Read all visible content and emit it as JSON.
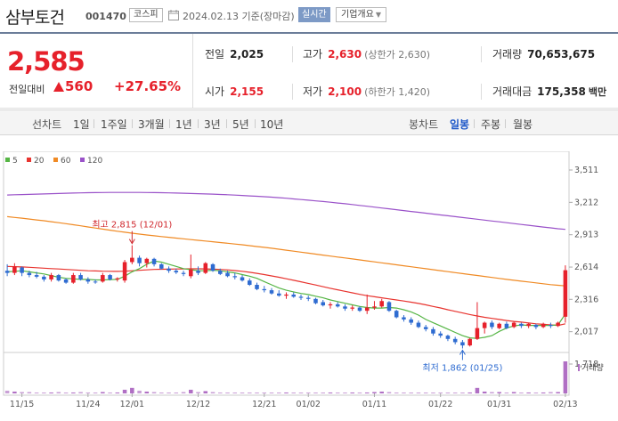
{
  "header": {
    "stock_name": "삼부토건",
    "stock_code": "001470",
    "market": "코스피",
    "date_text": "2024.02.13 기준(장마감)",
    "realtime_label": "실시간",
    "overview_label": "기업개요"
  },
  "price": {
    "current": "2,585",
    "change_label": "전일대비",
    "change_value": "560",
    "change_pct": "+27.65%"
  },
  "stats": {
    "prev_label": "전일",
    "prev_value": "2,025",
    "high_label": "고가",
    "high_value": "2,630",
    "upper_limit": "(상한가 2,630)",
    "volume_label": "거래량",
    "volume_value": "70,653,675",
    "open_label": "시가",
    "open_value": "2,155",
    "low_label": "저가",
    "low_value": "2,100",
    "lower_limit": "(하한가 1,420)",
    "amount_label": "거래대금",
    "amount_value": "175,358",
    "amount_unit": "백만"
  },
  "toolbar": {
    "line_label": "선차트",
    "periods": [
      "1일",
      "1주일",
      "3개월",
      "1년",
      "3년",
      "5년",
      "10년"
    ],
    "candle_label": "봉차트",
    "candle_periods": [
      "일봉",
      "주봉",
      "월봉"
    ],
    "active_candle": "일봉"
  },
  "colors": {
    "up": "#e6212b",
    "down": "#2f6cd1",
    "ma5": "#55b544",
    "ma20": "#e8342f",
    "ma60": "#f08a24",
    "ma120": "#9a52c9"
  },
  "chart_data": {
    "type": "candlestick",
    "legend": [
      {
        "name": "5",
        "color": "#55b544"
      },
      {
        "name": "20",
        "color": "#e8342f"
      },
      {
        "name": "60",
        "color": "#f08a24"
      },
      {
        "name": "120",
        "color": "#9a52c9"
      }
    ],
    "y_ticks": [
      3511,
      3212,
      2913,
      2614,
      2316,
      2017,
      1718
    ],
    "ylim": [
      1718,
      3511
    ],
    "x_ticks": [
      "11/15",
      "11/24",
      "12/01",
      "12/12",
      "12/21",
      "01/02",
      "01/11",
      "01/22",
      "01/31",
      "02/13"
    ],
    "annotations": {
      "high": "최고 2,815 (12/01)",
      "low": "최저 1,862 (01/25)"
    },
    "volume_label": "거래량",
    "candles": [
      {
        "o": 2580,
        "h": 2640,
        "l": 2530,
        "c": 2560
      },
      {
        "o": 2560,
        "h": 2650,
        "l": 2540,
        "c": 2620
      },
      {
        "o": 2610,
        "h": 2620,
        "l": 2530,
        "c": 2560
      },
      {
        "o": 2560,
        "h": 2580,
        "l": 2520,
        "c": 2540
      },
      {
        "o": 2540,
        "h": 2570,
        "l": 2510,
        "c": 2525
      },
      {
        "o": 2525,
        "h": 2540,
        "l": 2480,
        "c": 2500
      },
      {
        "o": 2500,
        "h": 2560,
        "l": 2480,
        "c": 2540
      },
      {
        "o": 2540,
        "h": 2550,
        "l": 2480,
        "c": 2490
      },
      {
        "o": 2500,
        "h": 2510,
        "l": 2460,
        "c": 2470
      },
      {
        "o": 2470,
        "h": 2560,
        "l": 2460,
        "c": 2540
      },
      {
        "o": 2540,
        "h": 2560,
        "l": 2490,
        "c": 2500
      },
      {
        "o": 2500,
        "h": 2520,
        "l": 2460,
        "c": 2480
      },
      {
        "o": 2480,
        "h": 2500,
        "l": 2460,
        "c": 2475
      },
      {
        "o": 2480,
        "h": 2560,
        "l": 2470,
        "c": 2540
      },
      {
        "o": 2540,
        "h": 2550,
        "l": 2490,
        "c": 2500
      },
      {
        "o": 2500,
        "h": 2520,
        "l": 2480,
        "c": 2510
      },
      {
        "o": 2490,
        "h": 2680,
        "l": 2470,
        "c": 2660
      },
      {
        "o": 2660,
        "h": 2815,
        "l": 2640,
        "c": 2700
      },
      {
        "o": 2700,
        "h": 2720,
        "l": 2620,
        "c": 2650
      },
      {
        "o": 2650,
        "h": 2700,
        "l": 2610,
        "c": 2690
      },
      {
        "o": 2690,
        "h": 2700,
        "l": 2620,
        "c": 2640
      },
      {
        "o": 2640,
        "h": 2650,
        "l": 2590,
        "c": 2600
      },
      {
        "o": 2600,
        "h": 2620,
        "l": 2560,
        "c": 2580
      },
      {
        "o": 2580,
        "h": 2600,
        "l": 2550,
        "c": 2565
      },
      {
        "o": 2560,
        "h": 2580,
        "l": 2530,
        "c": 2550
      },
      {
        "o": 2530,
        "h": 2730,
        "l": 2510,
        "c": 2590
      },
      {
        "o": 2580,
        "h": 2620,
        "l": 2540,
        "c": 2560
      },
      {
        "o": 2560,
        "h": 2660,
        "l": 2550,
        "c": 2650
      },
      {
        "o": 2640,
        "h": 2650,
        "l": 2570,
        "c": 2580
      },
      {
        "o": 2580,
        "h": 2600,
        "l": 2540,
        "c": 2550
      },
      {
        "o": 2560,
        "h": 2580,
        "l": 2520,
        "c": 2530
      },
      {
        "o": 2530,
        "h": 2560,
        "l": 2500,
        "c": 2520
      },
      {
        "o": 2520,
        "h": 2540,
        "l": 2480,
        "c": 2490
      },
      {
        "o": 2490,
        "h": 2510,
        "l": 2440,
        "c": 2450
      },
      {
        "o": 2450,
        "h": 2470,
        "l": 2400,
        "c": 2410
      },
      {
        "o": 2410,
        "h": 2440,
        "l": 2380,
        "c": 2400
      },
      {
        "o": 2400,
        "h": 2420,
        "l": 2360,
        "c": 2370
      },
      {
        "o": 2370,
        "h": 2400,
        "l": 2340,
        "c": 2350
      },
      {
        "o": 2350,
        "h": 2380,
        "l": 2320,
        "c": 2360
      },
      {
        "o": 2360,
        "h": 2380,
        "l": 2330,
        "c": 2340
      },
      {
        "o": 2340,
        "h": 2360,
        "l": 2310,
        "c": 2330
      },
      {
        "o": 2330,
        "h": 2350,
        "l": 2300,
        "c": 2320
      },
      {
        "o": 2320,
        "h": 2330,
        "l": 2270,
        "c": 2280
      },
      {
        "o": 2290,
        "h": 2310,
        "l": 2250,
        "c": 2260
      },
      {
        "o": 2260,
        "h": 2290,
        "l": 2230,
        "c": 2270
      },
      {
        "o": 2270,
        "h": 2290,
        "l": 2240,
        "c": 2250
      },
      {
        "o": 2250,
        "h": 2270,
        "l": 2210,
        "c": 2230
      },
      {
        "o": 2230,
        "h": 2260,
        "l": 2210,
        "c": 2240
      },
      {
        "o": 2240,
        "h": 2250,
        "l": 2200,
        "c": 2210
      },
      {
        "o": 2210,
        "h": 2360,
        "l": 2180,
        "c": 2240
      },
      {
        "o": 2240,
        "h": 2300,
        "l": 2220,
        "c": 2250
      },
      {
        "o": 2250,
        "h": 2320,
        "l": 2240,
        "c": 2300
      },
      {
        "o": 2290,
        "h": 2300,
        "l": 2200,
        "c": 2210
      },
      {
        "o": 2210,
        "h": 2220,
        "l": 2140,
        "c": 2150
      },
      {
        "o": 2150,
        "h": 2170,
        "l": 2110,
        "c": 2130
      },
      {
        "o": 2130,
        "h": 2150,
        "l": 2080,
        "c": 2100
      },
      {
        "o": 2100,
        "h": 2120,
        "l": 2050,
        "c": 2060
      },
      {
        "o": 2060,
        "h": 2080,
        "l": 2020,
        "c": 2040
      },
      {
        "o": 2040,
        "h": 2060,
        "l": 1980,
        "c": 2000
      },
      {
        "o": 2000,
        "h": 2020,
        "l": 1960,
        "c": 1980
      },
      {
        "o": 1980,
        "h": 1990,
        "l": 1930,
        "c": 1950
      },
      {
        "o": 1950,
        "h": 1970,
        "l": 1900,
        "c": 1920
      },
      {
        "o": 1920,
        "h": 1940,
        "l": 1862,
        "c": 1890
      },
      {
        "o": 1890,
        "h": 1960,
        "l": 1880,
        "c": 1950
      },
      {
        "o": 1950,
        "h": 2290,
        "l": 1940,
        "c": 2050
      },
      {
        "o": 2050,
        "h": 2110,
        "l": 2000,
        "c": 2100
      },
      {
        "o": 2100,
        "h": 2120,
        "l": 2040,
        "c": 2060
      },
      {
        "o": 2050,
        "h": 2100,
        "l": 2040,
        "c": 2090
      },
      {
        "o": 2090,
        "h": 2110,
        "l": 2040,
        "c": 2050
      },
      {
        "o": 2060,
        "h": 2110,
        "l": 2050,
        "c": 2100
      },
      {
        "o": 2090,
        "h": 2100,
        "l": 2050,
        "c": 2070
      },
      {
        "o": 2070,
        "h": 2100,
        "l": 2050,
        "c": 2090
      },
      {
        "o": 2080,
        "h": 2090,
        "l": 2040,
        "c": 2060
      },
      {
        "o": 2060,
        "h": 2100,
        "l": 2050,
        "c": 2090
      },
      {
        "o": 2080,
        "h": 2100,
        "l": 2050,
        "c": 2070
      },
      {
        "o": 2070,
        "h": 2110,
        "l": 2060,
        "c": 2100
      },
      {
        "o": 2155,
        "h": 2630,
        "l": 2100,
        "c": 2585
      }
    ],
    "ma5": [
      2570,
      2575,
      2580,
      2570,
      2560,
      2550,
      2535,
      2520,
      2510,
      2505,
      2500,
      2500,
      2495,
      2495,
      2498,
      2500,
      2530,
      2570,
      2600,
      2640,
      2670,
      2660,
      2640,
      2620,
      2600,
      2590,
      2580,
      2580,
      2585,
      2580,
      2570,
      2560,
      2545,
      2530,
      2510,
      2480,
      2450,
      2420,
      2400,
      2385,
      2370,
      2360,
      2345,
      2330,
      2310,
      2295,
      2280,
      2265,
      2250,
      2240,
      2235,
      2235,
      2240,
      2235,
      2220,
      2200,
      2170,
      2130,
      2100,
      2070,
      2040,
      2010,
      1980,
      1960,
      1955,
      1965,
      1980,
      2020,
      2050,
      2070,
      2080,
      2075,
      2075,
      2075,
      2075,
      2080,
      2180
    ],
    "ma20": [
      2620,
      2618,
      2615,
      2612,
      2608,
      2604,
      2600,
      2596,
      2592,
      2588,
      2584,
      2580,
      2578,
      2576,
      2575,
      2574,
      2576,
      2580,
      2584,
      2588,
      2592,
      2594,
      2595,
      2596,
      2597,
      2598,
      2598,
      2597,
      2595,
      2592,
      2588,
      2582,
      2575,
      2566,
      2556,
      2545,
      2532,
      2520,
      2506,
      2492,
      2478,
      2463,
      2448,
      2433,
      2418,
      2404,
      2390,
      2376,
      2362,
      2350,
      2340,
      2330,
      2320,
      2310,
      2300,
      2290,
      2278,
      2265,
      2250,
      2236,
      2220,
      2205,
      2190,
      2175,
      2162,
      2150,
      2140,
      2130,
      2120,
      2112,
      2105,
      2098,
      2090,
      2085,
      2080,
      2075,
      2090
    ],
    "ma60": [
      3080,
      3073,
      3066,
      3058,
      3050,
      3042,
      3033,
      3024,
      3015,
      3005,
      2995,
      2985,
      2975,
      2965,
      2955,
      2945,
      2936,
      2927,
      2919,
      2911,
      2903,
      2896,
      2889,
      2882,
      2875,
      2868,
      2861,
      2855,
      2848,
      2841,
      2834,
      2827,
      2820,
      2812,
      2804,
      2796,
      2788,
      2779,
      2770,
      2761,
      2752,
      2743,
      2734,
      2725,
      2716,
      2707,
      2698,
      2689,
      2680,
      2671,
      2662,
      2653,
      2644,
      2635,
      2626,
      2617,
      2608,
      2599,
      2590,
      2581,
      2572,
      2563,
      2554,
      2545,
      2536,
      2527,
      2518,
      2509,
      2500,
      2492,
      2484,
      2476,
      2468,
      2460,
      2452,
      2446,
      2440
    ],
    "ma120": [
      3280,
      3282,
      3284,
      3286,
      3288,
      3290,
      3292,
      3294,
      3296,
      3298,
      3300,
      3301,
      3302,
      3303,
      3304,
      3304,
      3304,
      3304,
      3304,
      3303,
      3302,
      3301,
      3300,
      3298,
      3296,
      3294,
      3292,
      3290,
      3288,
      3285,
      3282,
      3279,
      3276,
      3272,
      3268,
      3264,
      3260,
      3255,
      3250,
      3244,
      3238,
      3232,
      3226,
      3220,
      3213,
      3206,
      3199,
      3192,
      3184,
      3176,
      3168,
      3160,
      3152,
      3144,
      3136,
      3128,
      3120,
      3112,
      3104,
      3096,
      3088,
      3080,
      3072,
      3064,
      3056,
      3048,
      3040,
      3032,
      3024,
      3016,
      3008,
      3000,
      2992,
      2984,
      2976,
      2968,
      2962
    ],
    "volumes": [
      6,
      4,
      3,
      3,
      2,
      2,
      2,
      3,
      2,
      2,
      3,
      2,
      2,
      3,
      2,
      2,
      8,
      12,
      6,
      4,
      3,
      2,
      2,
      2,
      3,
      8,
      3,
      5,
      3,
      2,
      2,
      2,
      2,
      2,
      2,
      2,
      2,
      2,
      2,
      2,
      2,
      2,
      2,
      2,
      2,
      2,
      2,
      2,
      2,
      2,
      3,
      4,
      3,
      2,
      2,
      2,
      2,
      2,
      2,
      2,
      2,
      2,
      2,
      2,
      12,
      4,
      3,
      3,
      2,
      3,
      2,
      2,
      2,
      2,
      3,
      3,
      70
    ]
  }
}
